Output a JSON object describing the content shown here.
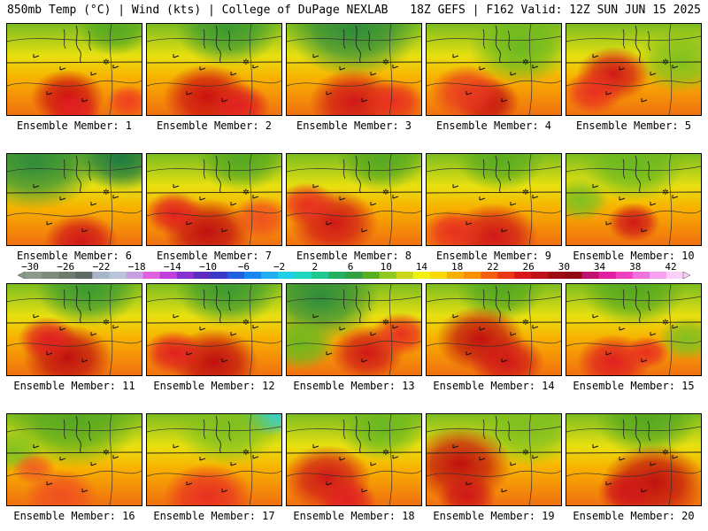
{
  "header": {
    "left": "850mb Temp (°C) | Wind (kts) | College of DuPage NEXLAB",
    "right": "18Z GEFS | F162 Valid: 12Z SUN JUN 15 2025"
  },
  "caption_prefix": "Ensemble Member:",
  "members": [
    {
      "number": "1",
      "hot": [
        [
          0.45,
          0.8,
          0.25,
          "#cc1111"
        ],
        [
          0.5,
          0.95,
          0.18,
          "#e02020"
        ],
        [
          0.9,
          0.85,
          0.15,
          "#f04020"
        ]
      ],
      "cool": [
        [
          0.8,
          0.05,
          0.25,
          "#55a820"
        ]
      ]
    },
    {
      "number": "2",
      "hot": [
        [
          0.45,
          0.8,
          0.3,
          "#cc1111"
        ],
        [
          0.7,
          0.9,
          0.2,
          "#e02020"
        ]
      ],
      "cool": [
        [
          0.6,
          0.05,
          0.35,
          "#3c9a30"
        ]
      ]
    },
    {
      "number": "3",
      "hot": [
        [
          0.5,
          0.85,
          0.3,
          "#d01818"
        ],
        [
          0.8,
          0.85,
          0.2,
          "#e83020"
        ]
      ],
      "cool": [
        [
          0.5,
          0.05,
          0.45,
          "#2f8c3a"
        ]
      ]
    },
    {
      "number": "4",
      "hot": [
        [
          0.45,
          0.85,
          0.22,
          "#c01010"
        ],
        [
          0.3,
          0.75,
          0.25,
          "#e83a20"
        ]
      ],
      "cool": [
        [
          0.7,
          0.25,
          0.35,
          "#6ab820"
        ]
      ]
    },
    {
      "number": "5",
      "hot": [
        [
          0.35,
          0.55,
          0.25,
          "#d01818"
        ],
        [
          0.2,
          0.75,
          0.2,
          "#e83020"
        ]
      ],
      "cool": [
        [
          0.85,
          0.4,
          0.3,
          "#80c020"
        ]
      ]
    },
    {
      "number": "6",
      "hot": [
        [
          0.55,
          0.95,
          0.25,
          "#d01818"
        ]
      ],
      "cool": [
        [
          0.2,
          0.08,
          0.45,
          "#2f8c3a"
        ],
        [
          0.85,
          0.05,
          0.3,
          "#1e7a40"
        ]
      ]
    },
    {
      "number": "7",
      "hot": [
        [
          0.45,
          0.85,
          0.3,
          "#c01010"
        ],
        [
          0.2,
          0.65,
          0.2,
          "#e02020"
        ],
        [
          0.85,
          0.7,
          0.2,
          "#f05020"
        ]
      ],
      "cool": [
        [
          0.7,
          0.05,
          0.3,
          "#55a820"
        ]
      ]
    },
    {
      "number": "8",
      "hot": [
        [
          0.35,
          0.75,
          0.3,
          "#d01818"
        ],
        [
          0.15,
          0.55,
          0.2,
          "#e83020"
        ]
      ],
      "cool": [
        [
          0.7,
          0.05,
          0.3,
          "#55a820"
        ]
      ]
    },
    {
      "number": "9",
      "hot": [
        [
          0.5,
          0.9,
          0.3,
          "#d01818"
        ],
        [
          0.2,
          0.85,
          0.2,
          "#e83020"
        ]
      ],
      "cool": [
        [
          0.55,
          0.05,
          0.3,
          "#5aac20"
        ]
      ]
    },
    {
      "number": "10",
      "hot": [
        [
          0.5,
          0.75,
          0.18,
          "#d01818"
        ]
      ],
      "cool": [
        [
          0.5,
          0.1,
          0.35,
          "#6ab820"
        ],
        [
          0.1,
          0.5,
          0.2,
          "#80c020"
        ]
      ]
    },
    {
      "number": "11",
      "hot": [
        [
          0.45,
          0.8,
          0.3,
          "#c01010"
        ],
        [
          0.3,
          0.6,
          0.2,
          "#e02020"
        ]
      ],
      "cool": [
        [
          0.6,
          0.05,
          0.35,
          "#3c9a30"
        ]
      ]
    },
    {
      "number": "12",
      "hot": [
        [
          0.5,
          0.85,
          0.3,
          "#c01010"
        ],
        [
          0.2,
          0.75,
          0.2,
          "#e02020"
        ]
      ],
      "cool": [
        [
          0.6,
          0.05,
          0.35,
          "#3c9a30"
        ]
      ]
    },
    {
      "number": "13",
      "hot": [
        [
          0.6,
          0.75,
          0.25,
          "#d01818"
        ],
        [
          0.85,
          0.55,
          0.2,
          "#e83020"
        ]
      ],
      "cool": [
        [
          0.25,
          0.15,
          0.4,
          "#2f8c3a"
        ],
        [
          0.1,
          0.65,
          0.25,
          "#6ab820"
        ]
      ]
    },
    {
      "number": "14",
      "hot": [
        [
          0.4,
          0.6,
          0.3,
          "#c01010"
        ],
        [
          0.6,
          0.85,
          0.25,
          "#d01818"
        ]
      ],
      "cool": [
        [
          0.55,
          0.05,
          0.3,
          "#55a820"
        ]
      ]
    },
    {
      "number": "15",
      "hot": [
        [
          0.35,
          0.85,
          0.25,
          "#e02020"
        ],
        [
          0.6,
          0.75,
          0.15,
          "#e83020"
        ]
      ],
      "cool": [
        [
          0.5,
          0.05,
          0.35,
          "#55a820"
        ],
        [
          0.9,
          0.6,
          0.2,
          "#80c020"
        ]
      ]
    },
    {
      "number": "16",
      "hot": [
        [
          0.4,
          0.9,
          0.25,
          "#f05020"
        ],
        [
          0.2,
          0.6,
          0.15,
          "#f06020"
        ]
      ],
      "cool": [
        [
          0.5,
          0.05,
          0.45,
          "#55a820"
        ],
        [
          0.05,
          0.4,
          0.2,
          "#80c020"
        ]
      ]
    },
    {
      "number": "17",
      "hot": [
        [
          0.45,
          0.9,
          0.3,
          "#e83020"
        ]
      ],
      "cool": [
        [
          0.9,
          0.0,
          0.2,
          "#30d0e0"
        ],
        [
          0.6,
          0.15,
          0.35,
          "#80c020"
        ]
      ]
    },
    {
      "number": "18",
      "hot": [
        [
          0.3,
          0.7,
          0.3,
          "#d01818"
        ],
        [
          0.45,
          0.95,
          0.2,
          "#e02020"
        ]
      ],
      "cool": [
        [
          0.7,
          0.15,
          0.3,
          "#6ab820"
        ]
      ]
    },
    {
      "number": "19",
      "hot": [
        [
          0.25,
          0.55,
          0.35,
          "#c01010"
        ],
        [
          0.3,
          0.9,
          0.2,
          "#d01818"
        ]
      ],
      "cool": [
        [
          0.75,
          0.15,
          0.35,
          "#80c020"
        ]
      ]
    },
    {
      "number": "20",
      "hot": [
        [
          0.65,
          0.75,
          0.35,
          "#c01010"
        ],
        [
          0.45,
          0.85,
          0.2,
          "#d01818"
        ]
      ],
      "cool": [
        [
          0.6,
          0.05,
          0.35,
          "#55a820"
        ]
      ]
    }
  ],
  "colorbar": {
    "ticks": [
      "−30",
      "−26",
      "−22",
      "−18",
      "−14",
      "−10",
      "−6",
      "−2",
      "2",
      "6",
      "10",
      "14",
      "18",
      "22",
      "26",
      "30",
      "34",
      "38",
      "42"
    ],
    "colors": [
      "#8c9c8c",
      "#7c8c7c",
      "#6c7c6c",
      "#5c6c64",
      "#a8b4c8",
      "#b8c4d8",
      "#c6a0e0",
      "#e060e0",
      "#c040e0",
      "#8a30d0",
      "#5a2cc0",
      "#3a3ac8",
      "#2060e0",
      "#1888f0",
      "#20b0f0",
      "#20d0e8",
      "#20d8c0",
      "#20c890",
      "#20b060",
      "#30a040",
      "#58b020",
      "#90c820",
      "#c8d818",
      "#f0f010",
      "#f8d808",
      "#f8b000",
      "#f89000",
      "#f06010",
      "#e83818",
      "#d81818",
      "#c01018",
      "#a00c14",
      "#900a10",
      "#c01070",
      "#e020a0",
      "#f040c0",
      "#f070e0",
      "#f8a0f0",
      "#fcd0f8"
    ]
  }
}
